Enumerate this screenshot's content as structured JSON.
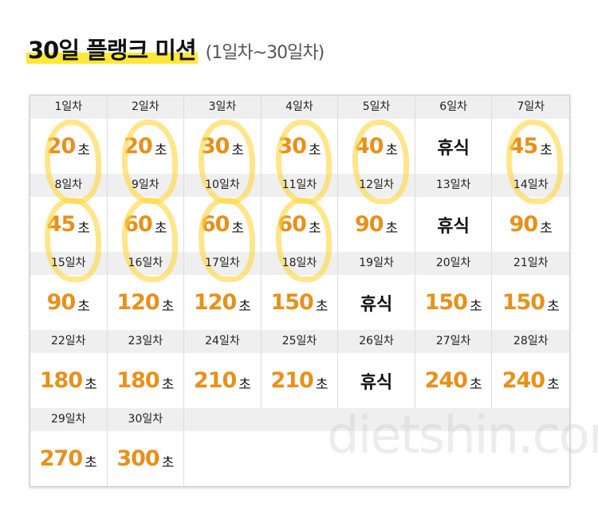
{
  "header": {
    "title": "30일 플랭크 미션",
    "subtitle": "(1일차~30일차)"
  },
  "table": {
    "cells": [
      {
        "day": "1일차",
        "value": "20",
        "unit": "초"
      },
      {
        "day": "2일차",
        "value": "20",
        "unit": "초"
      },
      {
        "day": "3일차",
        "value": "30",
        "unit": "초"
      },
      {
        "day": "4일차",
        "value": "30",
        "unit": "초"
      },
      {
        "day": "5일차",
        "value": "40",
        "unit": "초"
      },
      {
        "day": "6일차",
        "rest": "휴식"
      },
      {
        "day": "7일차",
        "value": "45",
        "unit": "초"
      },
      {
        "day": "8일차",
        "value": "45",
        "unit": "초"
      },
      {
        "day": "9일차",
        "value": "60",
        "unit": "초"
      },
      {
        "day": "10일차",
        "value": "60",
        "unit": "초"
      },
      {
        "day": "11일차",
        "value": "60",
        "unit": "초"
      },
      {
        "day": "12일차",
        "value": "90",
        "unit": "초"
      },
      {
        "day": "13일차",
        "rest": "휴식"
      },
      {
        "day": "14일차",
        "value": "90",
        "unit": "초"
      },
      {
        "day": "15일차",
        "value": "90",
        "unit": "초"
      },
      {
        "day": "16일차",
        "value": "120",
        "unit": "초"
      },
      {
        "day": "17일차",
        "value": "120",
        "unit": "초"
      },
      {
        "day": "18일차",
        "value": "150",
        "unit": "초"
      },
      {
        "day": "19일차",
        "rest": "휴식"
      },
      {
        "day": "20일차",
        "value": "150",
        "unit": "초"
      },
      {
        "day": "21일차",
        "value": "150",
        "unit": "초"
      },
      {
        "day": "22일차",
        "value": "180",
        "unit": "초"
      },
      {
        "day": "23일차",
        "value": "180",
        "unit": "초"
      },
      {
        "day": "24일차",
        "value": "210",
        "unit": "초"
      },
      {
        "day": "25일차",
        "value": "210",
        "unit": "초"
      },
      {
        "day": "26일차",
        "rest": "휴식"
      },
      {
        "day": "27일차",
        "value": "240",
        "unit": "초"
      },
      {
        "day": "28일차",
        "value": "240",
        "unit": "초"
      },
      {
        "day": "29일차",
        "value": "270",
        "unit": "초"
      },
      {
        "day": "30일차",
        "value": "300",
        "unit": "초"
      }
    ]
  },
  "watermark": "dietshin.com"
}
